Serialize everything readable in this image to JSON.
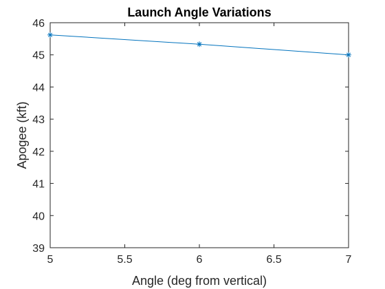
{
  "chart_data": {
    "type": "line",
    "title": "Launch Angle Variations",
    "xlabel": "Angle (deg from vertical)",
    "ylabel": "Apogee (kft)",
    "x": [
      5,
      6,
      7
    ],
    "series": [
      {
        "values": [
          45.62,
          45.33,
          45.0
        ],
        "color": "#0072BD",
        "marker": "asterisk"
      }
    ],
    "xlim": [
      5,
      7
    ],
    "ylim": [
      39,
      46
    ],
    "xticks": [
      "5",
      "5.5",
      "6",
      "6.5",
      "7"
    ],
    "yticks": [
      "39",
      "40",
      "41",
      "42",
      "43",
      "44",
      "45",
      "46"
    ],
    "grid": false,
    "box": true
  }
}
